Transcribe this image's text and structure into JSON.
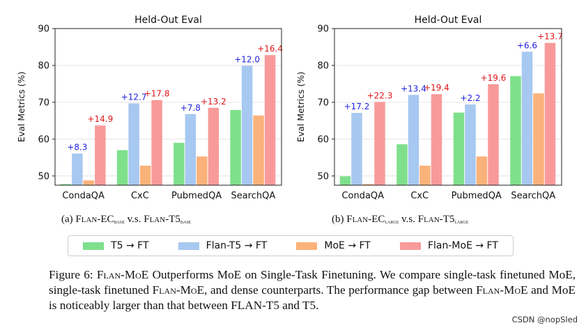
{
  "colors": {
    "t5": "#7fe08c",
    "flan_t5": "#a7c8f0",
    "moe": "#fbb27a",
    "flan_moe": "#f99a9a",
    "delta_blue": "#1f1fdf",
    "delta_red": "#e0151a"
  },
  "chart_data": [
    {
      "type": "bar",
      "title": "Held-Out Eval",
      "ylabel": "Eval Metrics (%)",
      "xlabel": "",
      "ylim": [
        47.5,
        90
      ],
      "yticks": [
        50,
        60,
        70,
        80,
        90
      ],
      "grid": true,
      "categories": [
        "CondaQA",
        "CxC",
        "PubmedQA",
        "SearchQA"
      ],
      "series": [
        {
          "name": "T5 → FT",
          "values": [
            47.8,
            57.0,
            59.0,
            67.9
          ]
        },
        {
          "name": "Flan-T5 → FT",
          "values": [
            56.1,
            69.7,
            66.8,
            79.9
          ]
        },
        {
          "name": "MoE → FT",
          "values": [
            48.8,
            52.8,
            55.3,
            66.4
          ]
        },
        {
          "name": "Flan-MoE → FT",
          "values": [
            63.7,
            70.6,
            68.5,
            82.8
          ]
        }
      ],
      "annotations_flan_t5": [
        "+8.3",
        "+12.7",
        "+7.8",
        "+12.0"
      ],
      "annotations_flan_moe": [
        "+14.9",
        "+17.8",
        "+13.2",
        "+16.4"
      ]
    },
    {
      "type": "bar",
      "title": "Held-Out Eval",
      "ylabel": "Eval Metrics (%)",
      "xlabel": "",
      "ylim": [
        47.5,
        90
      ],
      "yticks": [
        50,
        60,
        70,
        80,
        90
      ],
      "grid": true,
      "categories": [
        "CondaQA",
        "CxC",
        "PubmedQA",
        "SearchQA"
      ],
      "series": [
        {
          "name": "T5 → FT",
          "values": [
            49.9,
            58.6,
            67.2,
            77.1
          ]
        },
        {
          "name": "Flan-T5 → FT",
          "values": [
            67.1,
            72.0,
            69.4,
            83.7
          ]
        },
        {
          "name": "MoE → FT",
          "values": [
            47.8,
            52.8,
            55.3,
            72.4
          ]
        },
        {
          "name": "Flan-MoE → FT",
          "values": [
            70.1,
            72.2,
            74.9,
            86.1
          ]
        }
      ],
      "annotations_flan_t5": [
        "+17.2",
        "+13.4",
        "+2.2",
        "+6.6"
      ],
      "annotations_flan_moe": [
        "+22.3",
        "+19.4",
        "+19.6",
        "+13.7"
      ]
    }
  ],
  "subcaptions": {
    "a": {
      "prefix": "(a) ",
      "left_main": "Flan-EC",
      "left_sub": "base",
      "mid": " v.s. ",
      "right_main": "Flan-T5",
      "right_sub": "base"
    },
    "b": {
      "prefix": "(b) ",
      "left_main": "Flan-EC",
      "left_sub": "large",
      "mid": " v.s. ",
      "right_main": "Flan-T5",
      "right_sub": "large"
    }
  },
  "legend": [
    {
      "label": "T5 → FT",
      "color_key": "t5"
    },
    {
      "label": "Flan-T5 → FT",
      "color_key": "flan_t5"
    },
    {
      "label": "MoE → FT",
      "color_key": "moe"
    },
    {
      "label": "Flan-MoE → FT",
      "color_key": "flan_moe"
    }
  ],
  "caption": {
    "part1": "Figure 6: ",
    "sc1": "Flan-MoE",
    "part2": " Outperforms MoE on Single-Task Finetuning.  We compare single-task finetuned MoE, single-task finetuned ",
    "sc2": "Flan-MoE",
    "part3": ", and dense counterparts. The performance gap between ",
    "sc3": "Flan-MoE",
    "part4": " and MoE is noticeably larger than that between FLAN-T5 and T5."
  },
  "watermark": "CSDN @nopSled"
}
